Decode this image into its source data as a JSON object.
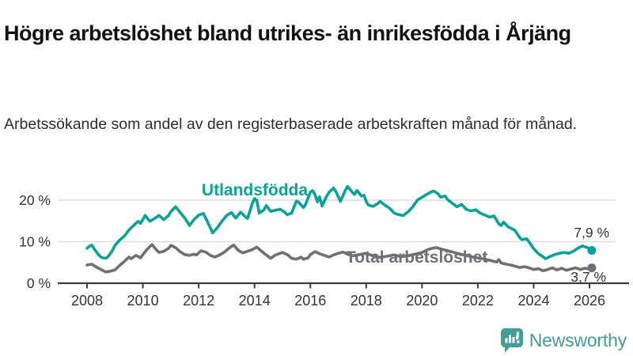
{
  "title": "Högre arbetslöshet bland utrikes- än inrikesfödda i Årjäng",
  "subtitle": "Arbetssökande som andel av den registerbaserade arbetskraften månad för månad.",
  "logo": {
    "text": "Newsworthy",
    "icon": "newsworthy-bubble-chart-icon"
  },
  "colors": {
    "foreign_born_line": "#0aa296",
    "total_line": "#6f6f74",
    "grid": "#dcdcdc",
    "axis": "#3c3c3c",
    "tick_text": "#333333",
    "end_label_text": "#333333",
    "logo_teal": "#459c95",
    "background": "#ffffff"
  },
  "chart_data": {
    "type": "line",
    "title": "Högre arbetslöshet bland utrikes- än inrikesfödda i Årjäng",
    "subtitle": "Arbetssökande som andel av den registerbaserade arbetskraften månad för månad.",
    "xlabel": "",
    "ylabel": "",
    "grid": "horizontal",
    "legend_position": "inline-labels",
    "x_range": [
      2008,
      2026.2
    ],
    "ylim": [
      0,
      25
    ],
    "x_ticks": [
      "2008",
      "2010",
      "2012",
      "2014",
      "2016",
      "2018",
      "2020",
      "2022",
      "2024",
      "2026"
    ],
    "x_tick_years": [
      2008,
      2010,
      2012,
      2014,
      2016,
      2018,
      2020,
      2022,
      2024,
      2026
    ],
    "y_ticks": [
      {
        "value": 0,
        "label": "0 %"
      },
      {
        "value": 10,
        "label": "10 %"
      },
      {
        "value": 20,
        "label": "20 %"
      }
    ],
    "series": [
      {
        "id": "utlandsfodda",
        "name": "Utlandsfödda",
        "color": "#0aa296",
        "end_label": "7,9 %",
        "end_value": 7.9,
        "points": [
          [
            2008.0,
            8.4
          ],
          [
            2008.08,
            8.9
          ],
          [
            2008.17,
            9.2
          ],
          [
            2008.25,
            8.3
          ],
          [
            2008.33,
            7.6
          ],
          [
            2008.42,
            6.8
          ],
          [
            2008.5,
            6.3
          ],
          [
            2008.58,
            6.1
          ],
          [
            2008.67,
            6.0
          ],
          [
            2008.75,
            6.4
          ],
          [
            2008.83,
            7.1
          ],
          [
            2008.92,
            8.0
          ],
          [
            2009.0,
            9.1
          ],
          [
            2009.17,
            10.4
          ],
          [
            2009.33,
            11.3
          ],
          [
            2009.5,
            12.8
          ],
          [
            2009.67,
            13.9
          ],
          [
            2009.83,
            14.9
          ],
          [
            2009.92,
            14.4
          ],
          [
            2010.08,
            16.3
          ],
          [
            2010.25,
            14.9
          ],
          [
            2010.42,
            15.6
          ],
          [
            2010.58,
            16.3
          ],
          [
            2010.75,
            15.3
          ],
          [
            2010.92,
            16.3
          ],
          [
            2011.0,
            17.2
          ],
          [
            2011.17,
            18.4
          ],
          [
            2011.33,
            17.1
          ],
          [
            2011.5,
            15.7
          ],
          [
            2011.67,
            13.9
          ],
          [
            2011.83,
            15.3
          ],
          [
            2012.0,
            16.4
          ],
          [
            2012.17,
            16.8
          ],
          [
            2012.33,
            14.6
          ],
          [
            2012.5,
            12.1
          ],
          [
            2012.67,
            13.4
          ],
          [
            2012.83,
            14.9
          ],
          [
            2013.0,
            16.3
          ],
          [
            2013.17,
            17.0
          ],
          [
            2013.33,
            15.7
          ],
          [
            2013.5,
            17.1
          ],
          [
            2013.67,
            16.0
          ],
          [
            2013.75,
            15.6
          ],
          [
            2013.92,
            19.2
          ],
          [
            2014.0,
            20.4
          ],
          [
            2014.08,
            20.0
          ],
          [
            2014.17,
            16.9
          ],
          [
            2014.33,
            17.6
          ],
          [
            2014.42,
            18.7
          ],
          [
            2014.58,
            17.3
          ],
          [
            2014.75,
            17.6
          ],
          [
            2014.92,
            17.8
          ],
          [
            2015.08,
            17.1
          ],
          [
            2015.17,
            16.5
          ],
          [
            2015.33,
            16.9
          ],
          [
            2015.5,
            19.8
          ],
          [
            2015.58,
            19.5
          ],
          [
            2015.75,
            18.2
          ],
          [
            2015.83,
            19.0
          ],
          [
            2016.0,
            21.9
          ],
          [
            2016.08,
            22.3
          ],
          [
            2016.17,
            21.3
          ],
          [
            2016.25,
            19.6
          ],
          [
            2016.33,
            20.8
          ],
          [
            2016.42,
            18.6
          ],
          [
            2016.58,
            20.9
          ],
          [
            2016.67,
            21.9
          ],
          [
            2016.83,
            22.9
          ],
          [
            2016.92,
            22.0
          ],
          [
            2017.08,
            19.7
          ],
          [
            2017.25,
            22.3
          ],
          [
            2017.33,
            23.3
          ],
          [
            2017.5,
            21.9
          ],
          [
            2017.58,
            21.4
          ],
          [
            2017.67,
            22.3
          ],
          [
            2017.83,
            21.0
          ],
          [
            2017.92,
            21.2
          ],
          [
            2018.0,
            19.7
          ],
          [
            2018.08,
            18.8
          ],
          [
            2018.25,
            18.5
          ],
          [
            2018.42,
            19.2
          ],
          [
            2018.5,
            19.7
          ],
          [
            2018.67,
            18.8
          ],
          [
            2018.83,
            18.1
          ],
          [
            2019.0,
            16.9
          ],
          [
            2019.17,
            16.5
          ],
          [
            2019.33,
            16.3
          ],
          [
            2019.5,
            17.2
          ],
          [
            2019.67,
            18.4
          ],
          [
            2019.83,
            20.0
          ],
          [
            2020.0,
            20.7
          ],
          [
            2020.17,
            21.4
          ],
          [
            2020.33,
            22.0
          ],
          [
            2020.42,
            22.2
          ],
          [
            2020.58,
            21.5
          ],
          [
            2020.67,
            20.7
          ],
          [
            2020.83,
            21.0
          ],
          [
            2020.92,
            20.1
          ],
          [
            2021.08,
            19.3
          ],
          [
            2021.25,
            18.4
          ],
          [
            2021.42,
            19.0
          ],
          [
            2021.58,
            17.8
          ],
          [
            2021.75,
            17.4
          ],
          [
            2021.92,
            17.7
          ],
          [
            2022.08,
            16.9
          ],
          [
            2022.25,
            16.4
          ],
          [
            2022.42,
            15.9
          ],
          [
            2022.58,
            16.2
          ],
          [
            2022.75,
            14.3
          ],
          [
            2022.83,
            13.9
          ],
          [
            2022.92,
            14.7
          ],
          [
            2023.08,
            13.6
          ],
          [
            2023.17,
            13.3
          ],
          [
            2023.33,
            12.7
          ],
          [
            2023.5,
            11.0
          ],
          [
            2023.58,
            10.5
          ],
          [
            2023.75,
            10.7
          ],
          [
            2023.92,
            9.1
          ],
          [
            2024.0,
            8.3
          ],
          [
            2024.17,
            7.1
          ],
          [
            2024.33,
            6.4
          ],
          [
            2024.42,
            5.9
          ],
          [
            2024.58,
            6.4
          ],
          [
            2024.75,
            6.9
          ],
          [
            2024.92,
            7.2
          ],
          [
            2025.08,
            7.4
          ],
          [
            2025.25,
            7.2
          ],
          [
            2025.42,
            7.7
          ],
          [
            2025.58,
            8.4
          ],
          [
            2025.75,
            9.0
          ],
          [
            2025.92,
            8.6
          ],
          [
            2026.08,
            7.9
          ]
        ]
      },
      {
        "id": "total",
        "name": "Total arbetslöshet",
        "color": "#6f6f74",
        "end_label": "3,7 %",
        "end_value": 3.7,
        "points": [
          [
            2008.0,
            4.4
          ],
          [
            2008.17,
            4.6
          ],
          [
            2008.33,
            3.9
          ],
          [
            2008.5,
            3.3
          ],
          [
            2008.67,
            2.7
          ],
          [
            2008.83,
            2.9
          ],
          [
            2009.0,
            3.2
          ],
          [
            2009.17,
            4.3
          ],
          [
            2009.33,
            5.2
          ],
          [
            2009.5,
            6.3
          ],
          [
            2009.58,
            5.9
          ],
          [
            2009.75,
            6.7
          ],
          [
            2009.92,
            6.1
          ],
          [
            2010.0,
            6.9
          ],
          [
            2010.17,
            8.3
          ],
          [
            2010.33,
            9.3
          ],
          [
            2010.5,
            7.9
          ],
          [
            2010.58,
            7.4
          ],
          [
            2010.75,
            7.7
          ],
          [
            2010.92,
            8.4
          ],
          [
            2011.0,
            9.1
          ],
          [
            2011.17,
            8.6
          ],
          [
            2011.33,
            7.6
          ],
          [
            2011.5,
            6.9
          ],
          [
            2011.67,
            6.7
          ],
          [
            2011.83,
            7.0
          ],
          [
            2011.92,
            6.8
          ],
          [
            2012.08,
            7.8
          ],
          [
            2012.25,
            7.5
          ],
          [
            2012.42,
            6.7
          ],
          [
            2012.58,
            6.3
          ],
          [
            2012.75,
            6.8
          ],
          [
            2012.92,
            7.5
          ],
          [
            2013.08,
            8.4
          ],
          [
            2013.25,
            9.2
          ],
          [
            2013.42,
            7.9
          ],
          [
            2013.58,
            7.3
          ],
          [
            2013.75,
            7.7
          ],
          [
            2013.92,
            8.1
          ],
          [
            2014.08,
            8.7
          ],
          [
            2014.25,
            7.7
          ],
          [
            2014.42,
            6.8
          ],
          [
            2014.58,
            6.0
          ],
          [
            2014.75,
            6.8
          ],
          [
            2014.92,
            7.2
          ],
          [
            2015.0,
            7.4
          ],
          [
            2015.17,
            6.9
          ],
          [
            2015.33,
            6.0
          ],
          [
            2015.5,
            5.8
          ],
          [
            2015.67,
            6.3
          ],
          [
            2015.75,
            5.8
          ],
          [
            2015.92,
            6.1
          ],
          [
            2016.0,
            6.9
          ],
          [
            2016.17,
            7.6
          ],
          [
            2016.33,
            7.1
          ],
          [
            2016.5,
            6.7
          ],
          [
            2016.67,
            6.3
          ],
          [
            2016.83,
            6.8
          ],
          [
            2017.0,
            7.2
          ],
          [
            2017.17,
            7.5
          ],
          [
            2017.33,
            7.0
          ],
          [
            2017.5,
            6.6
          ],
          [
            2017.75,
            6.9
          ],
          [
            2018.0,
            7.2
          ],
          [
            2018.25,
            6.6
          ],
          [
            2018.5,
            6.2
          ],
          [
            2018.75,
            6.5
          ],
          [
            2019.0,
            6.8
          ],
          [
            2019.25,
            6.4
          ],
          [
            2019.5,
            6.6
          ],
          [
            2019.75,
            7.0
          ],
          [
            2020.0,
            7.4
          ],
          [
            2020.25,
            8.2
          ],
          [
            2020.5,
            8.6
          ],
          [
            2020.75,
            8.1
          ],
          [
            2021.0,
            7.7
          ],
          [
            2021.25,
            7.2
          ],
          [
            2021.5,
            6.8
          ],
          [
            2021.75,
            6.4
          ],
          [
            2022.0,
            6.1
          ],
          [
            2022.25,
            5.8
          ],
          [
            2022.5,
            5.4
          ],
          [
            2022.67,
            5.1
          ],
          [
            2022.75,
            5.7
          ],
          [
            2022.83,
            4.9
          ],
          [
            2023.0,
            4.6
          ],
          [
            2023.17,
            4.4
          ],
          [
            2023.33,
            4.1
          ],
          [
            2023.5,
            3.8
          ],
          [
            2023.67,
            4.0
          ],
          [
            2023.83,
            3.7
          ],
          [
            2024.0,
            3.3
          ],
          [
            2024.17,
            3.5
          ],
          [
            2024.33,
            3.0
          ],
          [
            2024.5,
            3.3
          ],
          [
            2024.67,
            3.7
          ],
          [
            2024.83,
            3.2
          ],
          [
            2025.0,
            3.6
          ],
          [
            2025.17,
            3.1
          ],
          [
            2025.33,
            3.4
          ],
          [
            2025.5,
            3.7
          ],
          [
            2025.67,
            3.3
          ],
          [
            2025.83,
            3.6
          ],
          [
            2026.0,
            3.4
          ],
          [
            2026.08,
            3.7
          ]
        ]
      }
    ]
  }
}
